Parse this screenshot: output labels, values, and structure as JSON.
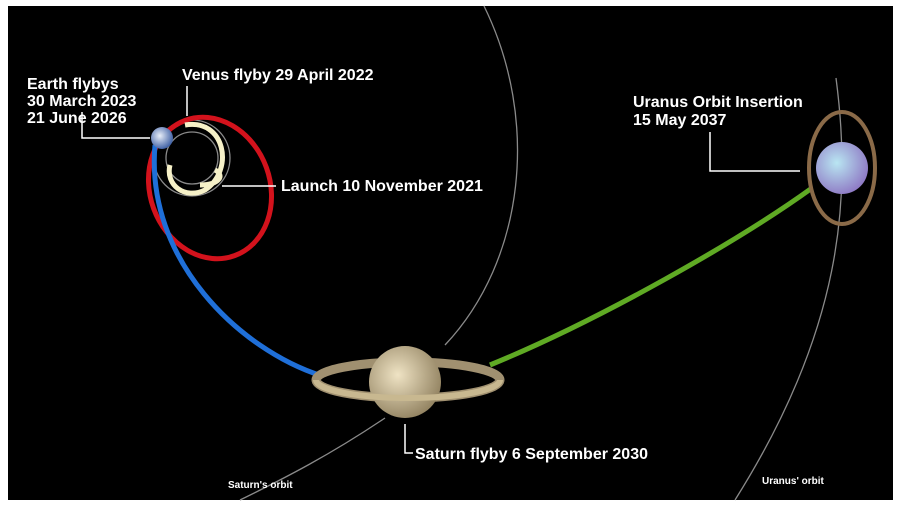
{
  "labels": {
    "earth_flybys": [
      "Earth flybys",
      "30 March 2023",
      "21 June 2026"
    ],
    "venus_flyby": "Venus flyby 29 April 2022",
    "launch": "Launch 10 November 2021",
    "uranus_insertion": [
      "Uranus Orbit Insertion",
      "15 May 2037"
    ],
    "saturn_flyby": "Saturn flyby 6 September 2030",
    "saturn_orbit": "Saturn's orbit",
    "uranus_orbit": "Uranus' orbit"
  }
}
